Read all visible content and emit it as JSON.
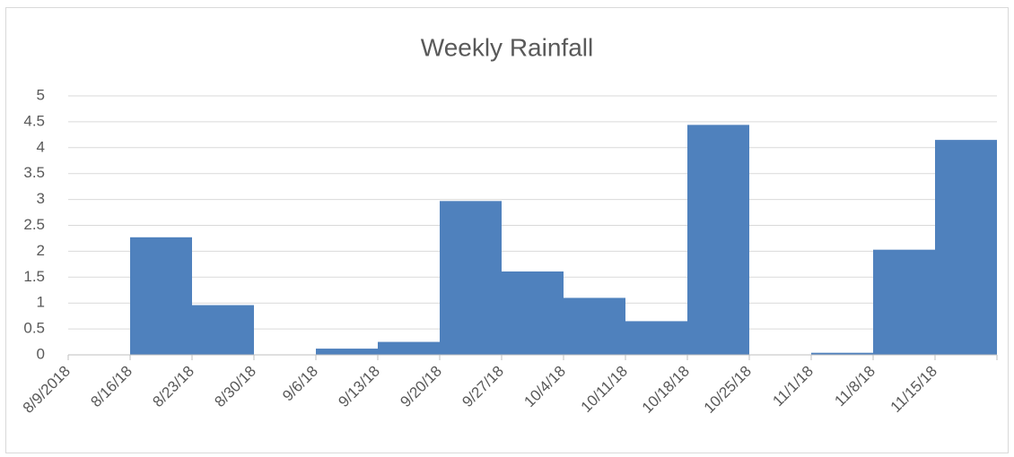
{
  "chart_data": {
    "type": "bar",
    "title": "Weekly Rainfall",
    "categories": [
      "8/9/2018",
      "8/16/18",
      "8/23/18",
      "8/30/18",
      "9/6/18",
      "9/13/18",
      "9/20/18",
      "9/27/18",
      "10/4/18",
      "10/11/18",
      "10/18/18",
      "10/25/18",
      "11/1/18",
      "11/8/18",
      "11/15/18"
    ],
    "values": [
      0,
      2.27,
      0.96,
      0,
      0.12,
      0.25,
      2.97,
      1.61,
      1.1,
      0.65,
      4.44,
      0,
      0.04,
      2.03,
      4.15
    ],
    "color": "#4f81bd",
    "ylim": [
      0,
      5
    ],
    "yticks": [
      0,
      0.5,
      1,
      1.5,
      2,
      2.5,
      3,
      3.5,
      4,
      4.5,
      5
    ],
    "grid": true
  }
}
